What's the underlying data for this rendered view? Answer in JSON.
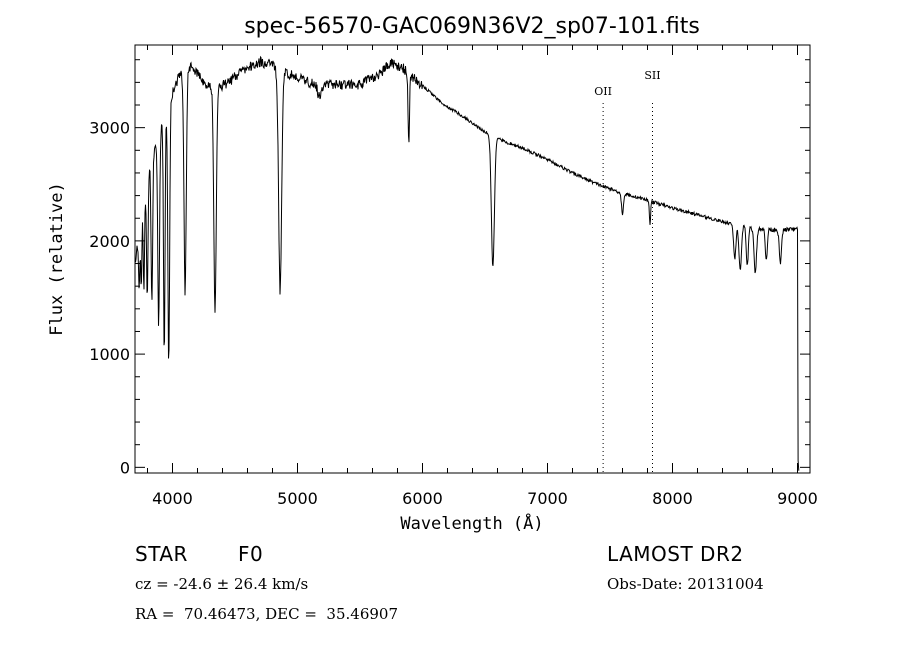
{
  "chart_data": {
    "type": "line",
    "title": "spec-56570-GAC069N36V2_sp07-101.fits",
    "xlabel": "Wavelength (Å)",
    "ylabel": "Flux (relative)",
    "xlim": [
      3700,
      9100
    ],
    "ylim": [
      -50,
      3730
    ],
    "x_ticks": [
      4000,
      5000,
      6000,
      7000,
      8000,
      9000
    ],
    "y_ticks": [
      0,
      1000,
      2000,
      3000
    ],
    "grid": false,
    "series": [
      {
        "continuum": [
          [
            3700,
            1800
          ],
          [
            3760,
            2300
          ],
          [
            3850,
            2800
          ],
          [
            3950,
            3150
          ],
          [
            4050,
            3450
          ],
          [
            4150,
            3550
          ],
          [
            4250,
            3400
          ],
          [
            4350,
            3350
          ],
          [
            4450,
            3400
          ],
          [
            4550,
            3500
          ],
          [
            4700,
            3580
          ],
          [
            4800,
            3550
          ],
          [
            4900,
            3480
          ],
          [
            5000,
            3450
          ],
          [
            5100,
            3400
          ],
          [
            5300,
            3380
          ],
          [
            5500,
            3380
          ],
          [
            5650,
            3470
          ],
          [
            5750,
            3570
          ],
          [
            5850,
            3520
          ],
          [
            5950,
            3420
          ],
          [
            6050,
            3320
          ],
          [
            6150,
            3220
          ],
          [
            6250,
            3150
          ],
          [
            6350,
            3080
          ],
          [
            6450,
            3000
          ],
          [
            6550,
            2930
          ],
          [
            6650,
            2880
          ],
          [
            6800,
            2820
          ],
          [
            7000,
            2720
          ],
          [
            7200,
            2600
          ],
          [
            7400,
            2500
          ],
          [
            7600,
            2420
          ],
          [
            7800,
            2360
          ],
          [
            8000,
            2290
          ],
          [
            8200,
            2230
          ],
          [
            8400,
            2170
          ],
          [
            8600,
            2120
          ],
          [
            8800,
            2100
          ],
          [
            9000,
            2100
          ]
        ],
        "absorption_lines": [
          {
            "x": 3734,
            "depth": 500,
            "width": 5
          },
          {
            "x": 3750,
            "depth": 600,
            "width": 5
          },
          {
            "x": 3771,
            "depth": 800,
            "width": 5
          },
          {
            "x": 3798,
            "depth": 1000,
            "width": 6
          },
          {
            "x": 3835,
            "depth": 1300,
            "width": 6
          },
          {
            "x": 3889,
            "depth": 1700,
            "width": 7
          },
          {
            "x": 3934,
            "depth": 2100,
            "width": 6
          },
          {
            "x": 3970,
            "depth": 2300,
            "width": 7
          },
          {
            "x": 4101,
            "depth": 1950,
            "width": 9
          },
          {
            "x": 4340,
            "depth": 1950,
            "width": 10
          },
          {
            "x": 4861,
            "depth": 1950,
            "width": 12
          },
          {
            "x": 5175,
            "depth": 120,
            "width": 15
          },
          {
            "x": 5890,
            "depth": 600,
            "width": 6
          },
          {
            "x": 6563,
            "depth": 1150,
            "width": 12
          },
          {
            "x": 7600,
            "depth": 180,
            "width": 8
          },
          {
            "x": 7820,
            "depth": 200,
            "width": 5
          },
          {
            "x": 8498,
            "depth": 300,
            "width": 9
          },
          {
            "x": 8542,
            "depth": 400,
            "width": 10
          },
          {
            "x": 8598,
            "depth": 350,
            "width": 8
          },
          {
            "x": 8662,
            "depth": 400,
            "width": 10
          },
          {
            "x": 8750,
            "depth": 280,
            "width": 8
          },
          {
            "x": 8863,
            "depth": 300,
            "width": 9
          }
        ]
      }
    ],
    "line_markers": [
      {
        "label": "OII",
        "x": 7445
      },
      {
        "label": "SII",
        "x": 7840
      }
    ]
  },
  "info": {
    "object_type": "STAR",
    "subclass": "F0",
    "survey": "LAMOST DR2",
    "cz": "cz = -24.6 ± 26.4 km/s",
    "obs_date": "Obs-Date: 20131004",
    "coords": "RA =  70.46473, DEC =  35.46907"
  }
}
